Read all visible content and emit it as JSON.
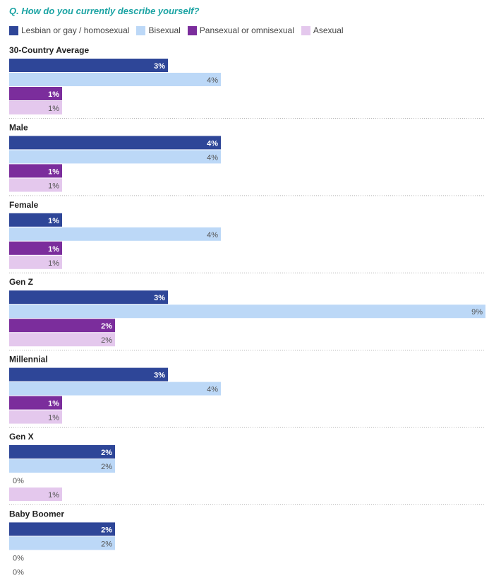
{
  "question": "Q. How do you currently describe yourself?",
  "legend": [
    {
      "label": "Lesbian or gay / homosexual",
      "color": "#2e4698"
    },
    {
      "label": "Bisexual",
      "color": "#bcd8f7"
    },
    {
      "label": "Pansexual or omnisexual",
      "color": "#7b2d9c"
    },
    {
      "label": "Asexual",
      "color": "#e4c8ed"
    }
  ],
  "chart_data": {
    "type": "bar",
    "orientation": "horizontal",
    "xlim": [
      0,
      9
    ],
    "grid": false,
    "legend_placement": "top",
    "categories": [
      "30-Country Average",
      "Male",
      "Female",
      "Gen Z",
      "Millennial",
      "Gen X",
      "Baby Boomer"
    ],
    "series": [
      {
        "name": "Lesbian or gay / homosexual",
        "color": "#2e4698",
        "label_color": "#ffffff",
        "label_weight": "bold",
        "values": [
          3,
          4,
          1,
          3,
          3,
          2,
          2
        ]
      },
      {
        "name": "Bisexual",
        "color": "#bcd8f7",
        "label_color": "#555555",
        "label_weight": "normal",
        "values": [
          4,
          4,
          4,
          9,
          4,
          2,
          2
        ]
      },
      {
        "name": "Pansexual or omnisexual",
        "color": "#7b2d9c",
        "label_color": "#ffffff",
        "label_weight": "bold",
        "values": [
          1,
          1,
          1,
          2,
          1,
          0,
          0
        ]
      },
      {
        "name": "Asexual",
        "color": "#e4c8ed",
        "label_color": "#555555",
        "label_weight": "normal",
        "values": [
          1,
          1,
          1,
          2,
          1,
          1,
          0
        ]
      }
    ]
  }
}
